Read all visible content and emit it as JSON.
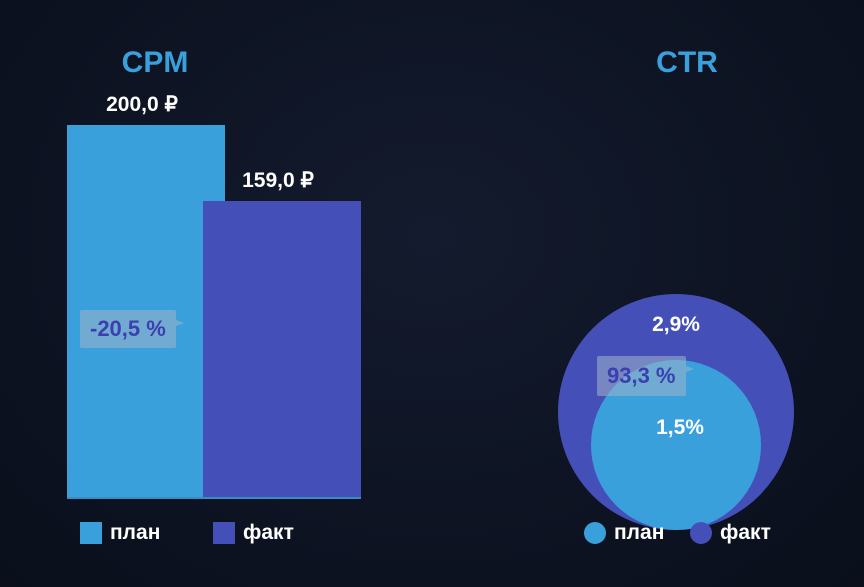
{
  "colors": {
    "plan": "#3aa0dc",
    "fact": "#4450b8"
  },
  "chart_data": [
    {
      "type": "bar",
      "title": "CPM",
      "categories": [
        "план",
        "факт"
      ],
      "values": [
        200.0,
        159.0
      ],
      "value_labels": [
        "200,0 ₽",
        "159,0 ₽"
      ],
      "change_label": "-20,5 %",
      "ylim": [
        0,
        200
      ],
      "legend": [
        "план",
        "факт"
      ],
      "legend_placement": "bottom"
    },
    {
      "type": "area-circles",
      "title": "CTR",
      "categories": [
        "план",
        "факт"
      ],
      "values": [
        1.5,
        2.9
      ],
      "value_labels": [
        "1,5%",
        "2,9%"
      ],
      "change_label": "93,3 %",
      "legend": [
        "план",
        "факт"
      ],
      "legend_placement": "bottom"
    }
  ]
}
